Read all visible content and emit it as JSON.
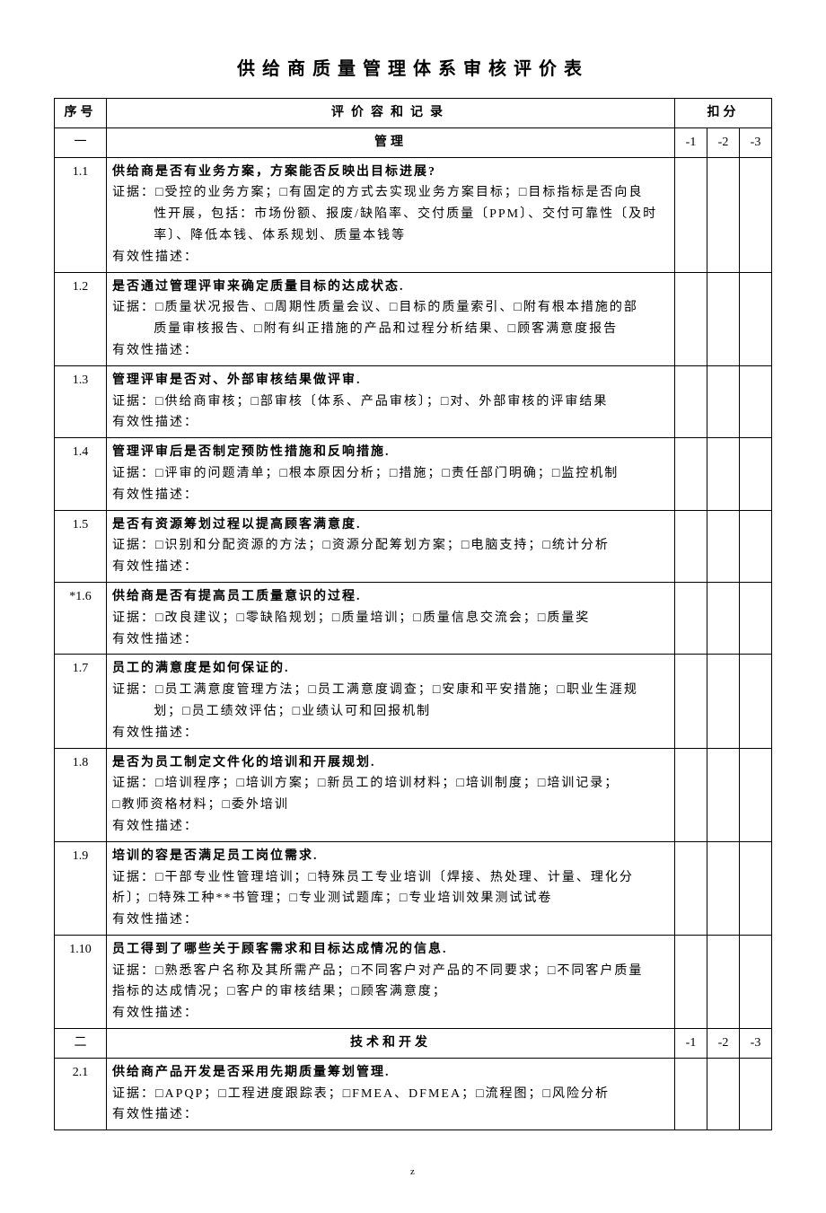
{
  "title": "供给商质量管理体系审核评价表",
  "footer": "z",
  "columns": {
    "seq": "序号",
    "content": "评价容和记录",
    "score": "扣分"
  },
  "score_labels": [
    "-1",
    "-2",
    "-3"
  ],
  "sections": [
    {
      "seq": "一",
      "title": "管理",
      "items": [
        {
          "seq": "1.1",
          "title": "供给商是否有业务方案，方案能否反映出目标进展?",
          "evidence": "证据：□受控的业务方案；□有固定的方式去实现业务方案目标；□目标指标是否向良",
          "evidence_cont": [
            "性开展，包括：市场份额、报废/缺陷率、交付质量〔PPM〕、交付可靠性〔及时",
            "率〕、降低本钱、体系规划、质量本钱等"
          ],
          "desc": "有效性描述："
        },
        {
          "seq": "1.2",
          "title": "是否通过管理评审来确定质量目标的达成状态.",
          "evidence": "证据：□质量状况报告、□周期性质量会议、□目标的质量索引、□附有根本措施的部",
          "evidence_cont": [
            "质量审核报告、□附有纠正措施的产品和过程分析结果、□顾客满意度报告"
          ],
          "desc": "有效性描述："
        },
        {
          "seq": "1.3",
          "title": "管理评审是否对、外部审核结果做评审.",
          "evidence": "证据：□供给商审核；□部审核〔体系、产品审核〕；□对、外部审核的评审结果",
          "evidence_cont": [],
          "desc": "有效性描述："
        },
        {
          "seq": "1.4",
          "title": "管理评审后是否制定预防性措施和反响措施.",
          "evidence": "证据：□评审的问题清单；□根本原因分析；□措施；□责任部门明确；□监控机制",
          "evidence_cont": [],
          "desc": "有效性描述："
        },
        {
          "seq": "1.5",
          "title": "是否有资源筹划过程以提高顾客满意度.",
          "evidence": "证据：□识别和分配资源的方法；□资源分配筹划方案；□电脑支持；□统计分析",
          "evidence_cont": [],
          "desc": "有效性描述："
        },
        {
          "seq": "*1.6",
          "title": "供给商是否有提高员工质量意识的过程.",
          "evidence": "证据：□改良建议；□零缺陷规划；□质量培训；□质量信息交流会；□质量奖",
          "evidence_cont": [],
          "desc": "有效性描述："
        },
        {
          "seq": "1.7",
          "title": "员工的满意度是如何保证的.",
          "evidence": "证据：□员工满意度管理方法；□员工满意度调查；□安康和平安措施；□职业生涯规",
          "evidence_cont": [
            "划；□员工绩效评估；□业绩认可和回报机制"
          ],
          "desc": "有效性描述："
        },
        {
          "seq": "1.8",
          "title": "是否为员工制定文件化的培训和开展规划.",
          "evidence": "证据：□培训程序；□培训方案；□新员工的培训材料；□培训制度；□培训记录；",
          "evidence_cont": [],
          "evidence_noindent": "□教师资格材料；□委外培训",
          "desc": "有效性描述："
        },
        {
          "seq": "1.9",
          "title": "培训的容是否满足员工岗位需求.",
          "evidence": "证据：□干部专业性管理培训；□特殊员工专业培训〔焊接、热处理、计量、理化分",
          "evidence_cont": [],
          "evidence_noindent": "析〕；□特殊工种**书管理；□专业测试题库；□专业培训效果测试试卷",
          "desc": "有效性描述："
        },
        {
          "seq": "1.10",
          "title": "员工得到了哪些关于顾客需求和目标达成情况的信息.",
          "evidence": "证据：□熟悉客户名称及其所需产品；□不同客户对产品的不同要求；□不同客户质量",
          "evidence_cont": [],
          "evidence_noindent": "指标的达成情况；□客户的审核结果；□顾客满意度；",
          "desc": "有效性描述："
        }
      ]
    },
    {
      "seq": "二",
      "title": "技术和开发",
      "items": [
        {
          "seq": "2.1",
          "title": "供给商产品开发是否采用先期质量筹划管理.",
          "evidence": "证据：□APQP；□工程进度跟踪表；□FMEA、DFMEA；□流程图；□风险分析",
          "evidence_cont": [],
          "desc": "有效性描述："
        }
      ]
    }
  ]
}
